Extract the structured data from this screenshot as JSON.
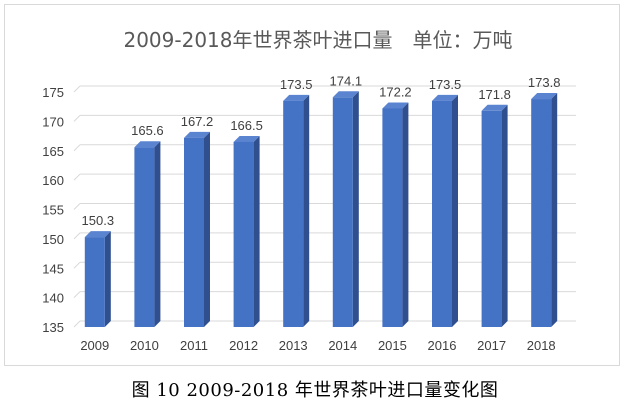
{
  "chart_data": {
    "type": "bar",
    "title": "2009-2018年世界茶叶进口量　单位：万吨",
    "xlabel": "",
    "ylabel": "",
    "categories": [
      "2009",
      "2010",
      "2011",
      "2012",
      "2013",
      "2014",
      "2015",
      "2016",
      "2017",
      "2018"
    ],
    "values": [
      150.3,
      165.6,
      167.2,
      166.5,
      173.5,
      174.1,
      172.2,
      173.5,
      171.8,
      173.8
    ],
    "data_labels": [
      "150.3",
      "165.6",
      "167.2",
      "166.5",
      "173.5",
      "174.1",
      "172.2",
      "173.5",
      "171.8",
      "173.8"
    ],
    "ylim": [
      135,
      175
    ],
    "yticks": [
      "135",
      "140",
      "145",
      "150",
      "155",
      "160",
      "165",
      "170",
      "175"
    ],
    "grid": true,
    "legend": "none",
    "bar_style": "3d",
    "colors": {
      "bar_front": "#4472c4",
      "bar_side": "#2f4f8f",
      "bar_top": "#5b84d0",
      "grid": "#d9d9d9",
      "text": "#404040"
    }
  },
  "caption": "图 10 2009-2018 年世界茶叶进口量变化图"
}
